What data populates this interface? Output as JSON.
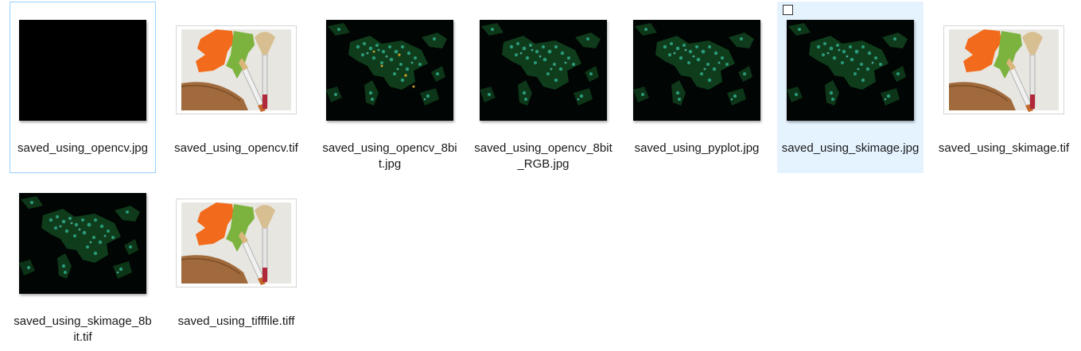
{
  "files": [
    {
      "name": "saved_using_opencv.jpg",
      "thumbnail": "black-image"
    },
    {
      "name": "saved_using_opencv.tif",
      "thumbnail": "paint-app-icon"
    },
    {
      "name": "saved_using_opencv_8bit.jpg",
      "thumbnail": "fluorescent-cells-image"
    },
    {
      "name": "saved_using_opencv_8bit_RGB.jpg",
      "thumbnail": "fluorescent-cells-image"
    },
    {
      "name": "saved_using_pyplot.jpg",
      "thumbnail": "fluorescent-cells-image"
    },
    {
      "name": "saved_using_skimage.jpg",
      "thumbnail": "fluorescent-cells-image"
    },
    {
      "name": "saved_using_skimage.tif",
      "thumbnail": "paint-app-icon"
    },
    {
      "name": "saved_using_skimage_8bit.tif",
      "thumbnail": "fluorescent-cells-image"
    },
    {
      "name": "saved_using_tifffile.tiff",
      "thumbnail": "paint-app-icon"
    }
  ],
  "colors": {
    "selection_background": "#e5f3ff",
    "focus_border": "#99d1ff"
  }
}
